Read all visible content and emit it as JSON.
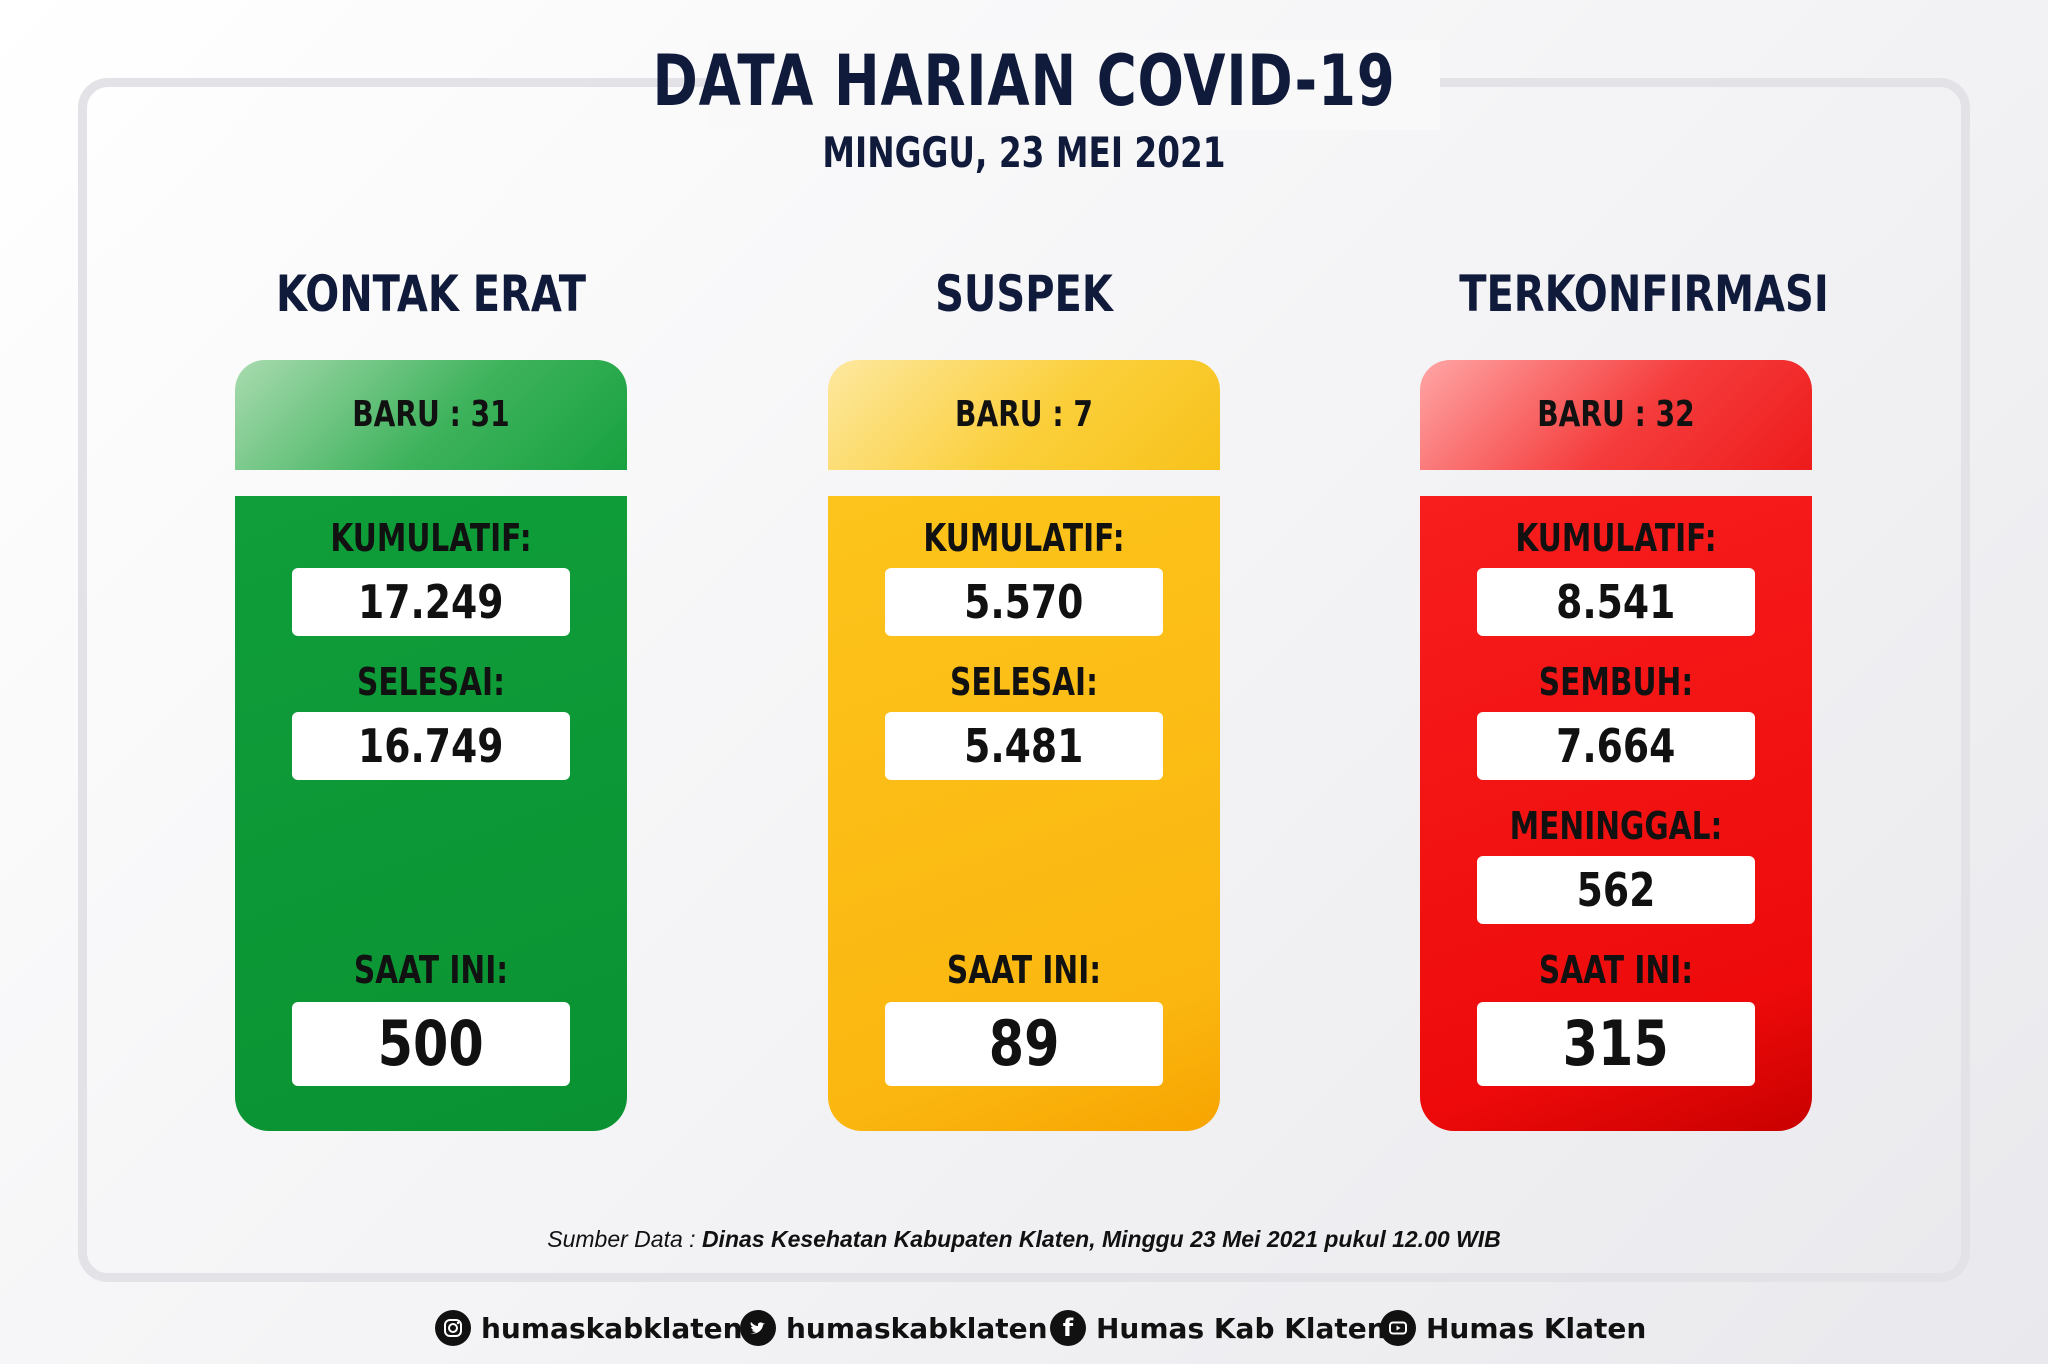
{
  "header": {
    "title": "DATA HARIAN COVID-19",
    "date": "MINGGU, 23 MEI 2021"
  },
  "columns": [
    {
      "title": "KONTAK ERAT",
      "baru": "BARU : 31",
      "stats": [
        {
          "label": "KUMULATIF:",
          "value": "17.249"
        },
        {
          "label": "SELESAI:",
          "value": "16.749"
        }
      ],
      "saat_ini_label": "SAAT INI:",
      "saat_ini_value": "500"
    },
    {
      "title": "SUSPEK",
      "baru": "BARU : 7",
      "stats": [
        {
          "label": "KUMULATIF:",
          "value": "5.570"
        },
        {
          "label": "SELESAI:",
          "value": "5.481"
        }
      ],
      "saat_ini_label": "SAAT INI:",
      "saat_ini_value": "89"
    },
    {
      "title": "TERKONFIRMASI",
      "baru": "BARU : 32",
      "stats": [
        {
          "label": "KUMULATIF:",
          "value": "8.541"
        },
        {
          "label": "SEMBUH:",
          "value": "7.664"
        },
        {
          "label": "MENINGGAL:",
          "value": "562"
        }
      ],
      "saat_ini_label": "SAAT INI:",
      "saat_ini_value": "315"
    }
  ],
  "source": {
    "prefix": "Sumber Data : ",
    "text": "Dinas Kesehatan Kabupaten Klaten, Minggu 23 Mei 2021 pukul 12.00 WIB"
  },
  "social": [
    {
      "icon": "instagram-icon",
      "label": "humaskabklaten"
    },
    {
      "icon": "twitter-icon",
      "label": "humaskabklaten"
    },
    {
      "icon": "facebook-icon",
      "label": "Humas Kab Klaten"
    },
    {
      "icon": "youtube-icon",
      "label": "Humas Klaten"
    }
  ],
  "colors": {
    "green": "#0f9e3a",
    "yellow": "#fcc41c",
    "red": "#f81e1e",
    "navy": "#101a3a"
  }
}
